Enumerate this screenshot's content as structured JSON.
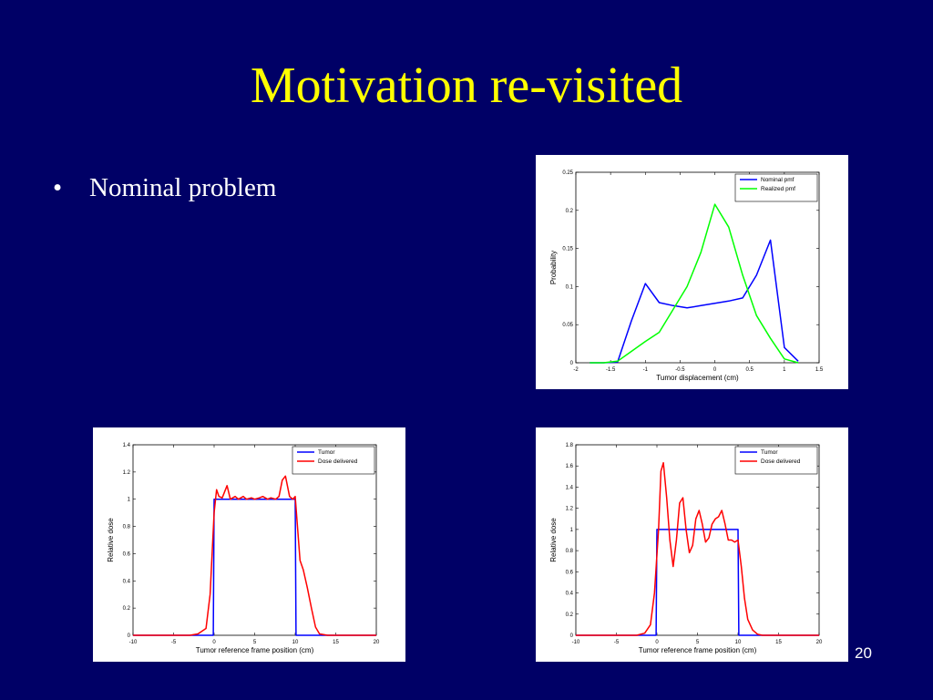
{
  "slide": {
    "title": "Motivation re-visited",
    "bullet": "Nominal problem",
    "page_number": "20",
    "colors": {
      "background": "#000066",
      "title": "#ffff00",
      "text": "#ffffff"
    }
  },
  "chart_data": [
    {
      "type": "line",
      "xlabel": "Tumor displacement (cm)",
      "ylabel": "Probability",
      "xlim": [
        -2,
        1.5
      ],
      "ylim": [
        0,
        0.25
      ],
      "xticks": [
        -2,
        -1.5,
        -1,
        -0.5,
        0,
        0.5,
        1,
        1.5
      ],
      "yticks": [
        0,
        0.05,
        0.1,
        0.15,
        0.2,
        0.25
      ],
      "legend_position": "top-right",
      "series": [
        {
          "name": "Nominal pmf",
          "color": "#0000ff",
          "x": [
            -1.8,
            -1.6,
            -1.4,
            -1.2,
            -1.0,
            -0.8,
            -0.6,
            -0.4,
            -0.2,
            0.0,
            0.2,
            0.4,
            0.6,
            0.8,
            1.0,
            1.2
          ],
          "y": [
            0,
            0,
            0.001,
            0.055,
            0.104,
            0.079,
            0.075,
            0.072,
            0.075,
            0.078,
            0.081,
            0.085,
            0.115,
            0.161,
            0.02,
            0.002
          ]
        },
        {
          "name": "Realized pmf",
          "color": "#00ff00",
          "x": [
            -1.8,
            -1.6,
            -1.4,
            -1.2,
            -1.0,
            -0.8,
            -0.6,
            -0.4,
            -0.2,
            0.0,
            0.2,
            0.4,
            0.6,
            0.8,
            1.0,
            1.2
          ],
          "y": [
            0,
            0,
            0.002,
            0.015,
            0.028,
            0.04,
            0.07,
            0.1,
            0.145,
            0.208,
            0.178,
            0.115,
            0.062,
            0.032,
            0.005,
            0
          ]
        }
      ]
    },
    {
      "type": "line",
      "xlabel": "Tumor reference frame position (cm)",
      "ylabel": "Relative dose",
      "xlim": [
        -10,
        20
      ],
      "ylim": [
        0,
        1.4
      ],
      "xticks": [
        -10,
        -5,
        0,
        5,
        10,
        15,
        20
      ],
      "yticks": [
        0,
        0.2,
        0.4,
        0.6,
        0.8,
        1,
        1.2,
        1.4
      ],
      "legend_position": "top-right",
      "series": [
        {
          "name": "Tumor",
          "color": "#0000ff",
          "x": [
            -10,
            -0.1,
            0,
            10,
            10.1,
            20
          ],
          "y": [
            0,
            0,
            1,
            1,
            0,
            0
          ]
        },
        {
          "name": "Dose delivered",
          "color": "#ff0000",
          "x": [
            -10,
            -3,
            -2,
            -1,
            -0.5,
            0,
            0.3,
            0.6,
            1,
            1.6,
            2,
            2.6,
            3,
            3.6,
            4,
            4.6,
            5,
            5.6,
            6,
            6.6,
            7,
            7.6,
            8,
            8.4,
            8.8,
            9.3,
            9.7,
            10,
            10.3,
            10.6,
            11,
            11.5,
            12,
            12.5,
            13,
            14,
            20
          ],
          "y": [
            0,
            0,
            0.01,
            0.05,
            0.3,
            0.9,
            1.07,
            1.02,
            1.01,
            1.1,
            1.0,
            1.02,
            1.0,
            1.02,
            1.0,
            1.01,
            1.0,
            1.01,
            1.02,
            1.0,
            1.01,
            1.0,
            1.02,
            1.14,
            1.17,
            1.02,
            1.0,
            1.02,
            0.78,
            0.55,
            0.48,
            0.35,
            0.2,
            0.06,
            0.01,
            0,
            0
          ]
        }
      ]
    },
    {
      "type": "line",
      "xlabel": "Tumor reference frame position (cm)",
      "ylabel": "Relative dose",
      "xlim": [
        -10,
        20
      ],
      "ylim": [
        0,
        1.8
      ],
      "xticks": [
        -10,
        -5,
        0,
        5,
        10,
        15,
        20
      ],
      "yticks": [
        0,
        0.2,
        0.4,
        0.6,
        0.8,
        1,
        1.2,
        1.4,
        1.6,
        1.8
      ],
      "legend_position": "top-right",
      "series": [
        {
          "name": "Tumor",
          "color": "#0000ff",
          "x": [
            -10,
            -0.1,
            0,
            10,
            10.1,
            20
          ],
          "y": [
            0,
            0,
            1,
            1,
            0,
            0
          ]
        },
        {
          "name": "Dose delivered",
          "color": "#ff0000",
          "x": [
            -10,
            -2.5,
            -1.5,
            -0.8,
            -0.3,
            0.2,
            0.5,
            0.8,
            1.2,
            1.6,
            2.0,
            2.4,
            2.8,
            3.2,
            3.6,
            4.0,
            4.4,
            4.8,
            5.2,
            5.6,
            6.0,
            6.4,
            6.8,
            7.2,
            7.6,
            8.0,
            8.4,
            8.8,
            9.2,
            9.6,
            10.0,
            10.4,
            10.8,
            11.2,
            11.8,
            12.4,
            13,
            20
          ],
          "y": [
            0,
            0,
            0.02,
            0.1,
            0.4,
            1.0,
            1.55,
            1.63,
            1.3,
            0.9,
            0.65,
            0.9,
            1.25,
            1.3,
            1.0,
            0.78,
            0.85,
            1.1,
            1.18,
            1.05,
            0.88,
            0.92,
            1.05,
            1.1,
            1.12,
            1.18,
            1.05,
            0.9,
            0.9,
            0.88,
            0.9,
            0.65,
            0.35,
            0.15,
            0.05,
            0.01,
            0,
            0
          ]
        }
      ]
    }
  ]
}
